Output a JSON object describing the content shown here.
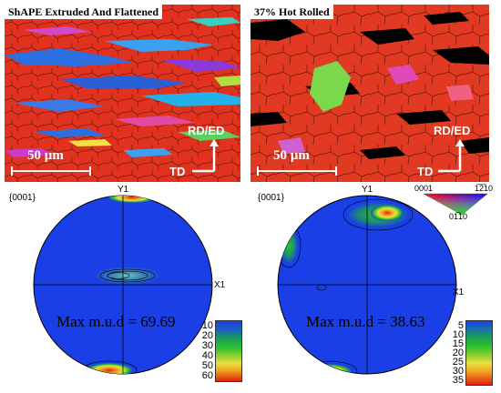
{
  "maps": [
    {
      "title": "ShAPE Extruded And Flattened",
      "scale_bar": "50 µm",
      "rd_ed": "RD/ED",
      "td": "TD"
    },
    {
      "title": "37% Hot Rolled",
      "scale_bar": "50 µm",
      "rd_ed": "RD/ED",
      "td": "TD"
    }
  ],
  "ipf_key": {
    "top_left": "0001",
    "top_right": "1̅2̅10",
    "bottom": "01̅10"
  },
  "pole_figures": [
    {
      "plane": "{0001}",
      "y_axis": "Y1",
      "x_axis": "X1",
      "max_mud": "Max m.u.d = 69.69",
      "colorbar": [
        "10",
        "20",
        "30",
        "40",
        "50",
        "60"
      ]
    },
    {
      "plane": "{0001}",
      "y_axis": "Y1",
      "x_axis": "X1",
      "max_mud": "Max m.u.d = 38.63",
      "colorbar": [
        "5",
        "10",
        "15",
        "20",
        "25",
        "30",
        "35"
      ]
    }
  ]
}
